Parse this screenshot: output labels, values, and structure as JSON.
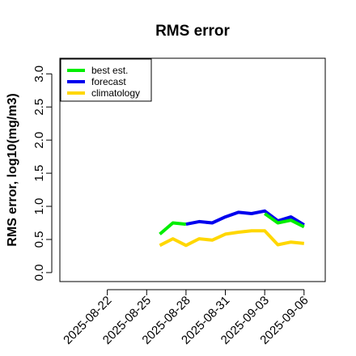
{
  "chart_data": {
    "type": "line",
    "title": "RMS error",
    "ylabel": "RMS error, log10(mg/m3)",
    "xlabel": "",
    "ylim": [
      -0.05,
      3.15
    ],
    "yticks": [
      "0.0",
      "0.5",
      "1.0",
      "1.5",
      "2.0",
      "2.5",
      "3.0"
    ],
    "xlim": [
      "2025-08-19",
      "2025-09-07"
    ],
    "xtick_labels": [
      "2025-08-22",
      "2025-08-25",
      "2025-08-28",
      "2025-08-31",
      "2025-09-03",
      "2025-09-06"
    ],
    "highlight_tick": "2025-08-28",
    "highlight_color": "#228B22",
    "grid": false,
    "legend_position": "top-left",
    "series": [
      {
        "name": "best est.",
        "color": "#00ee00",
        "x": [
          "2025-08-26",
          "2025-08-27",
          "2025-08-28"
        ],
        "values": [
          0.58,
          0.75,
          0.73
        ]
      },
      {
        "name": "forecast",
        "color": "#0000ee",
        "x": [
          "2025-08-28",
          "2025-08-29",
          "2025-08-30",
          "2025-08-31",
          "2025-09-01",
          "2025-09-02",
          "2025-09-03",
          "2025-09-04",
          "2025-09-05",
          "2025-09-06"
        ],
        "values": [
          0.73,
          0.77,
          0.75,
          0.84,
          0.91,
          0.89,
          0.93,
          0.78,
          0.84,
          0.72
        ]
      },
      {
        "name": "best est. (overlay)",
        "color": "#00ee00",
        "x": [
          "2025-09-03",
          "2025-09-04",
          "2025-09-05",
          "2025-09-06"
        ],
        "values": [
          0.89,
          0.75,
          0.79,
          0.69
        ]
      },
      {
        "name": "climatology",
        "color": "#ffd700",
        "x": [
          "2025-08-26",
          "2025-08-27",
          "2025-08-28",
          "2025-08-29",
          "2025-08-30",
          "2025-08-31",
          "2025-09-01",
          "2025-09-02",
          "2025-09-03",
          "2025-09-04",
          "2025-09-05",
          "2025-09-06"
        ],
        "values": [
          0.41,
          0.51,
          0.41,
          0.51,
          0.49,
          0.58,
          0.61,
          0.63,
          0.63,
          0.42,
          0.46,
          0.44
        ]
      }
    ],
    "legend": [
      "best est.",
      "forecast",
      "climatology"
    ]
  }
}
